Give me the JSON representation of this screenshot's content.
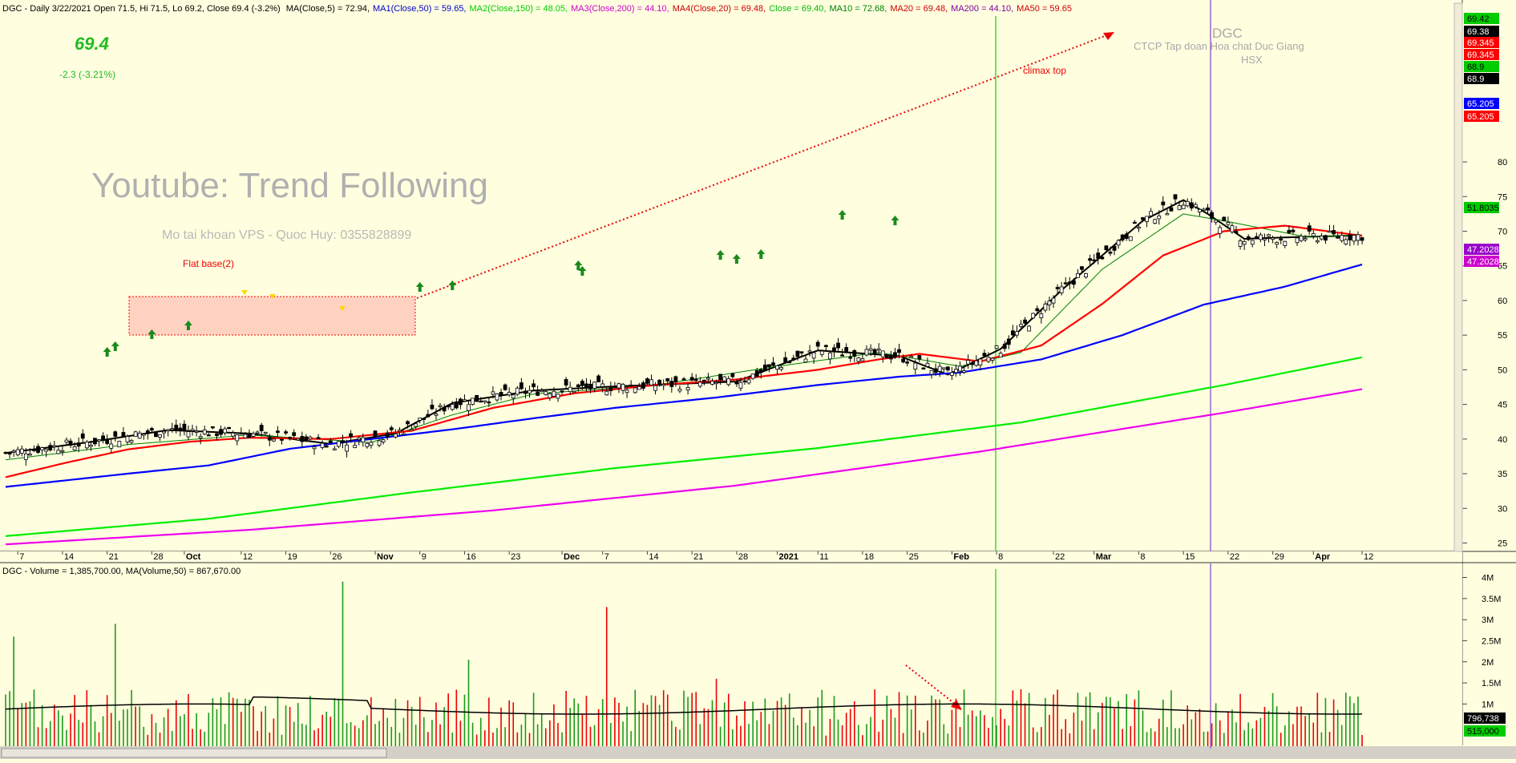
{
  "header": {
    "symbol": "DGC",
    "info": "DGC - Daily 3/22/2021 Open 71.5, Hi 71.5, Lo 69.2, Close 69.4 (-3.2%)",
    "ma_labels": [
      {
        "text": "MA(Close,5) = 72.94,",
        "color": "#000000"
      },
      {
        "text": "MA1(Close,50) = 59.65,",
        "color": "#0000c8"
      },
      {
        "text": "MA2(Close,150) = 48.05,",
        "color": "#00cc00"
      },
      {
        "text": "MA3(Close,200) = 44.10,",
        "color": "#cc00cc"
      },
      {
        "text": "MA4(Close,20) = 69.48,",
        "color": "#cc0000"
      },
      {
        "text": "Close = 69.40,",
        "color": "#00bb00"
      },
      {
        "text": "MA10 = 72.68,",
        "color": "#008000"
      },
      {
        "text": "MA20 = 69.48,",
        "color": "#cc0000"
      },
      {
        "text": "MA200 = 44.10,",
        "color": "#8000a0"
      },
      {
        "text": "MA50 = 59.65",
        "color": "#cc0000"
      }
    ]
  },
  "price_display": {
    "price": "69.4",
    "change": "-2.3 (-3.21%)"
  },
  "watermark": {
    "title": "Youtube: Trend Following",
    "subtitle": "Mo tai khoan VPS - Quoc Huy: 0355828899"
  },
  "annotations": {
    "flat_base": "Flat base(2)",
    "climax_top": "climax top",
    "company": "DGC",
    "company_full": "CTCP Tap doan Hoa chat Duc Giang",
    "exchange": "HSX"
  },
  "volume_header": "DGC - Volume = 1,385,700.00, MA(Volume,50) = 867,670.00",
  "y_tag_labels": [
    {
      "text": "69.42",
      "bg": "#00cc00",
      "fg": "#000000"
    },
    {
      "text": "69.38",
      "bg": "#000000",
      "fg": "#ffffff"
    },
    {
      "text": "69.345",
      "bg": "#ff0000",
      "fg": "#ffffff"
    },
    {
      "text": "69.345",
      "bg": "#ff0000",
      "fg": "#ffffff"
    },
    {
      "text": "68.9",
      "bg": "#00cc00",
      "fg": "#000000"
    },
    {
      "text": "68.9",
      "bg": "#000000",
      "fg": "#ffffff"
    },
    {
      "text": "65.205",
      "bg": "#0000ff",
      "fg": "#ffffff"
    },
    {
      "text": "65.205",
      "bg": "#ff0000",
      "fg": "#ffffff"
    },
    {
      "text": "51.8035",
      "bg": "#00cc00",
      "fg": "#000000"
    },
    {
      "text": "47.2028",
      "bg": "#9900cc",
      "fg": "#ffffff"
    },
    {
      "text": "47.2028",
      "bg": "#cc00cc",
      "fg": "#ffffff"
    }
  ],
  "volume_tags": [
    {
      "text": "796,738",
      "bg": "#000000",
      "fg": "#ffffff"
    },
    {
      "text": "515,000",
      "bg": "#00cc00",
      "fg": "#000000"
    }
  ],
  "chart_data": {
    "type": "line",
    "title": "DGC - Daily 3/22/2021",
    "ylim": [
      23,
      80
    ],
    "y_ticks": [
      25,
      30,
      35,
      40,
      45,
      50,
      55,
      60,
      65,
      70,
      75,
      80
    ],
    "x_ticks": [
      "7",
      "14",
      "21",
      "28",
      "Oct",
      "12",
      "19",
      "26",
      "Nov",
      "9",
      "16",
      "23",
      "Dec",
      "7",
      "14",
      "21",
      "28",
      "2021",
      "11",
      "18",
      "25",
      "Feb",
      "8",
      "22",
      "Mar",
      "8",
      "15",
      "22",
      "29",
      "Apr",
      "12"
    ],
    "x_tick_bars": [
      3,
      14,
      25,
      36,
      44,
      58,
      69,
      80,
      91,
      102,
      113,
      124,
      137,
      147,
      158,
      169,
      180,
      190,
      200,
      211,
      222,
      233,
      244,
      258,
      268,
      279,
      290,
      301,
      312,
      322,
      334
    ],
    "series": [
      {
        "name": "MA(Close,5)",
        "color": "#000000",
        "points": [
          [
            0,
            38.0
          ],
          [
            20,
            39.5
          ],
          [
            40,
            41.3
          ],
          [
            60,
            40.8
          ],
          [
            80,
            39.3
          ],
          [
            96,
            40.8
          ],
          [
            110,
            45.2
          ],
          [
            130,
            47.0
          ],
          [
            150,
            47.6
          ],
          [
            180,
            48.3
          ],
          [
            200,
            52.8
          ],
          [
            220,
            52.0
          ],
          [
            232,
            49.3
          ],
          [
            245,
            53.0
          ],
          [
            260,
            61.5
          ],
          [
            280,
            71.5
          ],
          [
            290,
            74.5
          ],
          [
            296,
            72.5
          ],
          [
            305,
            68.9
          ],
          [
            320,
            69.2
          ],
          [
            334,
            69.38
          ]
        ]
      },
      {
        "name": "MA10",
        "color": "#008000",
        "points": [
          [
            0,
            37.0
          ],
          [
            30,
            39.2
          ],
          [
            60,
            40.6
          ],
          [
            90,
            39.5
          ],
          [
            110,
            43.5
          ],
          [
            130,
            46.5
          ],
          [
            160,
            47.8
          ],
          [
            190,
            50.5
          ],
          [
            215,
            52.5
          ],
          [
            235,
            50.5
          ],
          [
            250,
            52.5
          ],
          [
            270,
            64.5
          ],
          [
            290,
            72.5
          ],
          [
            300,
            71.5
          ],
          [
            320,
            69.2
          ],
          [
            334,
            69.42
          ]
        ]
      },
      {
        "name": "MA20",
        "color": "#ff0000",
        "points": [
          [
            0,
            34.5
          ],
          [
            15,
            36.6
          ],
          [
            30,
            38.5
          ],
          [
            45,
            39.6
          ],
          [
            60,
            40.2
          ],
          [
            80,
            40.0
          ],
          [
            100,
            41.2
          ],
          [
            120,
            44.5
          ],
          [
            140,
            46.6
          ],
          [
            160,
            47.8
          ],
          [
            180,
            48.6
          ],
          [
            200,
            50.0
          ],
          [
            215,
            51.5
          ],
          [
            225,
            52.3
          ],
          [
            240,
            51.2
          ],
          [
            255,
            53.5
          ],
          [
            270,
            59.5
          ],
          [
            285,
            66.5
          ],
          [
            300,
            70.0
          ],
          [
            315,
            70.8
          ],
          [
            334,
            69.345
          ]
        ]
      },
      {
        "name": "MA50",
        "color": "#0000ff",
        "points": [
          [
            0,
            33.1
          ],
          [
            30,
            35.0
          ],
          [
            50,
            36.2
          ],
          [
            70,
            38.6
          ],
          [
            90,
            40.0
          ],
          [
            110,
            41.4
          ],
          [
            130,
            43.0
          ],
          [
            150,
            44.5
          ],
          [
            175,
            46.0
          ],
          [
            200,
            47.8
          ],
          [
            220,
            49.0
          ],
          [
            235,
            49.6
          ],
          [
            255,
            51.5
          ],
          [
            275,
            55.0
          ],
          [
            295,
            59.4
          ],
          [
            315,
            62.0
          ],
          [
            334,
            65.205
          ]
        ]
      },
      {
        "name": "MA150",
        "color": "#00ee00",
        "points": [
          [
            0,
            26.0
          ],
          [
            50,
            28.5
          ],
          [
            100,
            32.3
          ],
          [
            150,
            35.8
          ],
          [
            200,
            38.7
          ],
          [
            250,
            42.4
          ],
          [
            300,
            47.8
          ],
          [
            334,
            51.8035
          ]
        ]
      },
      {
        "name": "MA200",
        "color": "#ee00ee",
        "points": [
          [
            0,
            24.8
          ],
          [
            60,
            26.9
          ],
          [
            120,
            29.7
          ],
          [
            180,
            33.3
          ],
          [
            240,
            38.2
          ],
          [
            300,
            43.8
          ],
          [
            334,
            47.2028
          ]
        ]
      }
    ],
    "volume": {
      "ylim": [
        0,
        4200000
      ],
      "y_ticks": [
        "4M",
        "3.5M",
        "3M",
        "2.5M",
        "2M",
        "1.5M",
        "1M"
      ],
      "ma50_last": 796738,
      "last": 515000
    }
  }
}
